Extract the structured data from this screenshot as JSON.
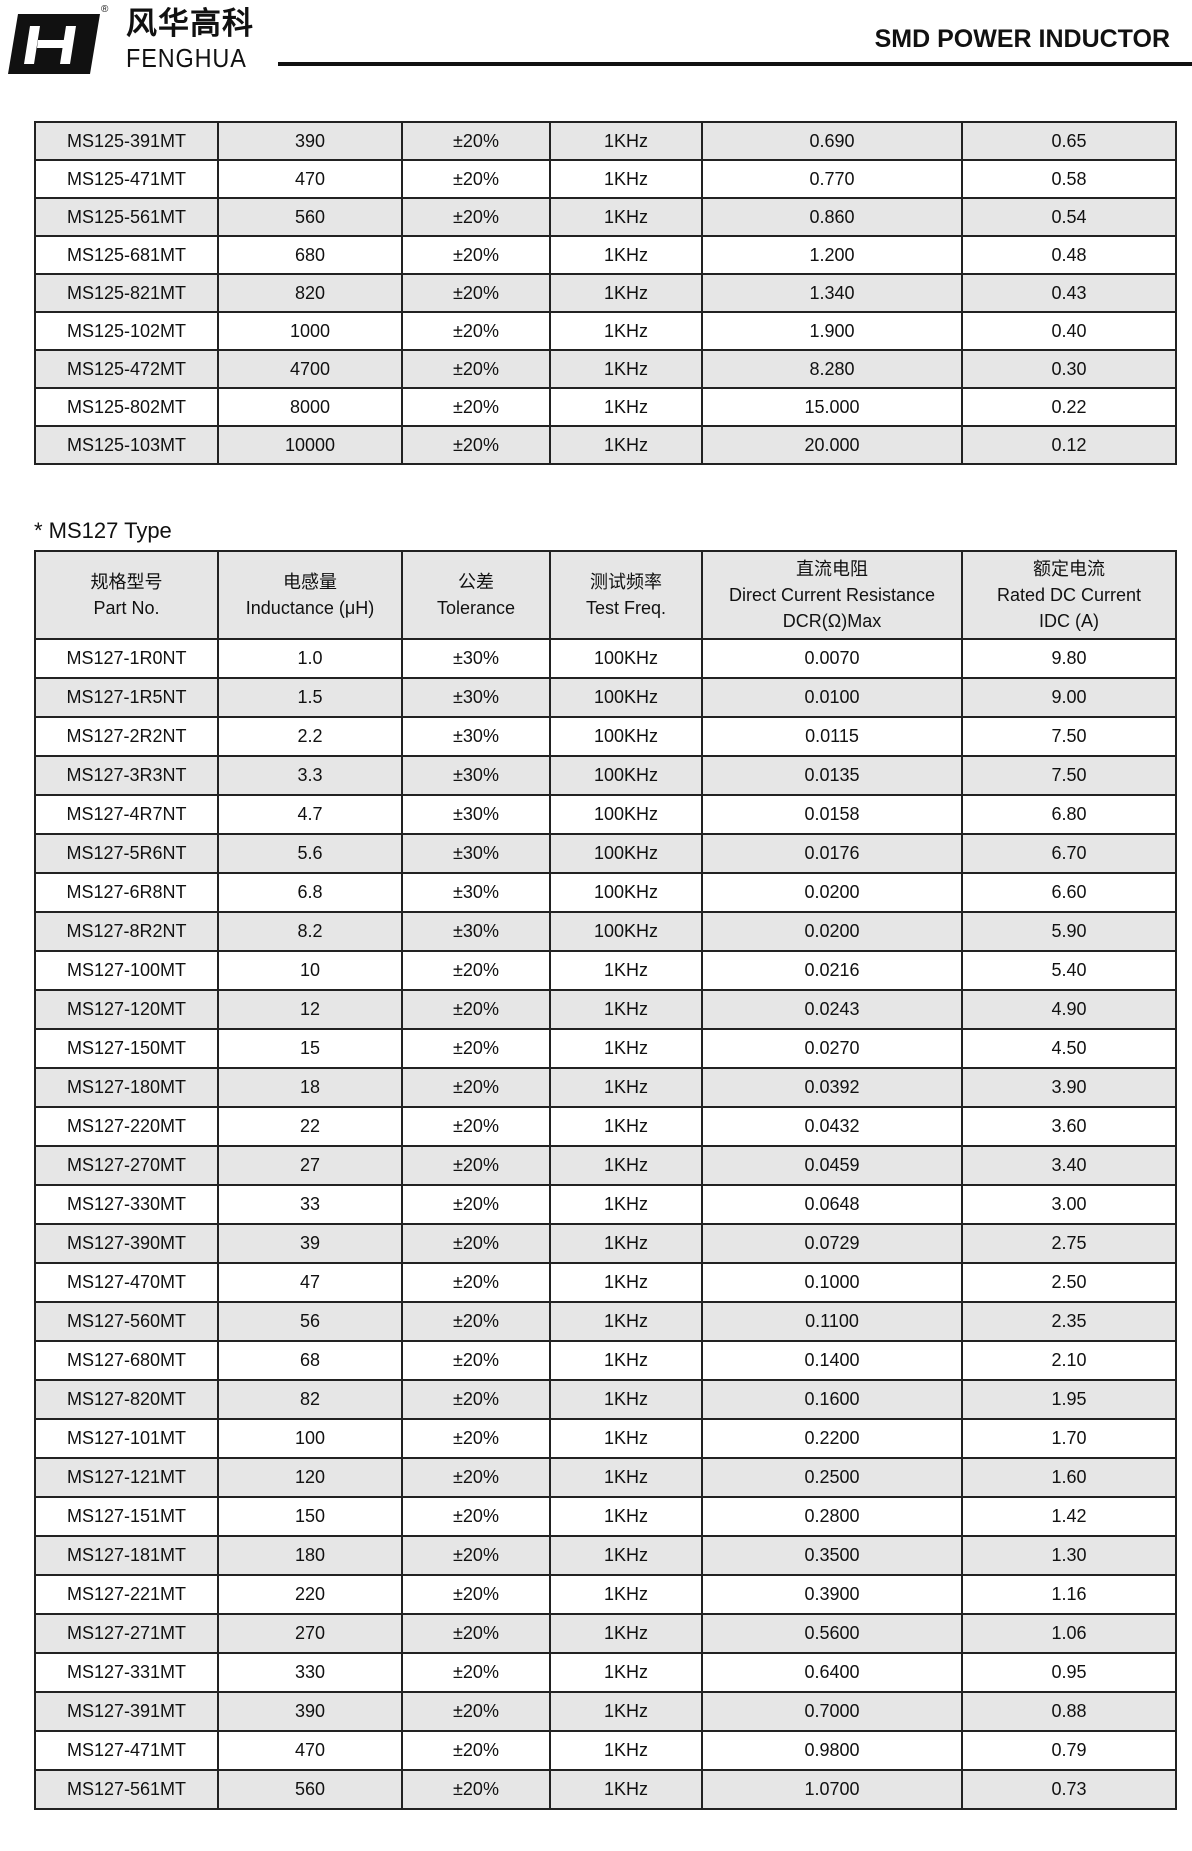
{
  "header": {
    "brand_cn": "风华高科",
    "brand_en": "FENGHUA",
    "registered": "®",
    "title": "SMD POWER INDUCTOR"
  },
  "ms125": {
    "rows": [
      [
        "MS125-391MT",
        "390",
        "±20%",
        "1KHz",
        "0.690",
        "0.65"
      ],
      [
        "MS125-471MT",
        "470",
        "±20%",
        "1KHz",
        "0.770",
        "0.58"
      ],
      [
        "MS125-561MT",
        "560",
        "±20%",
        "1KHz",
        "0.860",
        "0.54"
      ],
      [
        "MS125-681MT",
        "680",
        "±20%",
        "1KHz",
        "1.200",
        "0.48"
      ],
      [
        "MS125-821MT",
        "820",
        "±20%",
        "1KHz",
        "1.340",
        "0.43"
      ],
      [
        "MS125-102MT",
        "1000",
        "±20%",
        "1KHz",
        "1.900",
        "0.40"
      ],
      [
        "MS125-472MT",
        "4700",
        "±20%",
        "1KHz",
        "8.280",
        "0.30"
      ],
      [
        "MS125-802MT",
        "8000",
        "±20%",
        "1KHz",
        "15.000",
        "0.22"
      ],
      [
        "MS125-103MT",
        "10000",
        "±20%",
        "1KHz",
        "20.000",
        "0.12"
      ]
    ]
  },
  "ms127": {
    "section_title": "* MS127 Type",
    "headers": [
      [
        "规格型号",
        "Part No."
      ],
      [
        "电感量",
        "Inductance (μH)"
      ],
      [
        "公差",
        "Tolerance"
      ],
      [
        "测试频率",
        "Test Freq."
      ],
      [
        "直流电阻",
        "Direct Current Resistance",
        "DCR(Ω)Max"
      ],
      [
        "额定电流",
        "Rated DC Current",
        "IDC (A)"
      ]
    ],
    "rows": [
      [
        "MS127-1R0NT",
        "1.0",
        "±30%",
        "100KHz",
        "0.0070",
        "9.80"
      ],
      [
        "MS127-1R5NT",
        "1.5",
        "±30%",
        "100KHz",
        "0.0100",
        "9.00"
      ],
      [
        "MS127-2R2NT",
        "2.2",
        "±30%",
        "100KHz",
        "0.0115",
        "7.50"
      ],
      [
        "MS127-3R3NT",
        "3.3",
        "±30%",
        "100KHz",
        "0.0135",
        "7.50"
      ],
      [
        "MS127-4R7NT",
        "4.7",
        "±30%",
        "100KHz",
        "0.0158",
        "6.80"
      ],
      [
        "MS127-5R6NT",
        "5.6",
        "±30%",
        "100KHz",
        "0.0176",
        "6.70"
      ],
      [
        "MS127-6R8NT",
        "6.8",
        "±30%",
        "100KHz",
        "0.0200",
        "6.60"
      ],
      [
        "MS127-8R2NT",
        "8.2",
        "±30%",
        "100KHz",
        "0.0200",
        "5.90"
      ],
      [
        "MS127-100MT",
        "10",
        "±20%",
        "1KHz",
        "0.0216",
        "5.40"
      ],
      [
        "MS127-120MT",
        "12",
        "±20%",
        "1KHz",
        "0.0243",
        "4.90"
      ],
      [
        "MS127-150MT",
        "15",
        "±20%",
        "1KHz",
        "0.0270",
        "4.50"
      ],
      [
        "MS127-180MT",
        "18",
        "±20%",
        "1KHz",
        "0.0392",
        "3.90"
      ],
      [
        "MS127-220MT",
        "22",
        "±20%",
        "1KHz",
        "0.0432",
        "3.60"
      ],
      [
        "MS127-270MT",
        "27",
        "±20%",
        "1KHz",
        "0.0459",
        "3.40"
      ],
      [
        "MS127-330MT",
        "33",
        "±20%",
        "1KHz",
        "0.0648",
        "3.00"
      ],
      [
        "MS127-390MT",
        "39",
        "±20%",
        "1KHz",
        "0.0729",
        "2.75"
      ],
      [
        "MS127-470MT",
        "47",
        "±20%",
        "1KHz",
        "0.1000",
        "2.50"
      ],
      [
        "MS127-560MT",
        "56",
        "±20%",
        "1KHz",
        "0.1100",
        "2.35"
      ],
      [
        "MS127-680MT",
        "68",
        "±20%",
        "1KHz",
        "0.1400",
        "2.10"
      ],
      [
        "MS127-820MT",
        "82",
        "±20%",
        "1KHz",
        "0.1600",
        "1.95"
      ],
      [
        "MS127-101MT",
        "100",
        "±20%",
        "1KHz",
        "0.2200",
        "1.70"
      ],
      [
        "MS127-121MT",
        "120",
        "±20%",
        "1KHz",
        "0.2500",
        "1.60"
      ],
      [
        "MS127-151MT",
        "150",
        "±20%",
        "1KHz",
        "0.2800",
        "1.42"
      ],
      [
        "MS127-181MT",
        "180",
        "±20%",
        "1KHz",
        "0.3500",
        "1.30"
      ],
      [
        "MS127-221MT",
        "220",
        "±20%",
        "1KHz",
        "0.3900",
        "1.16"
      ],
      [
        "MS127-271MT",
        "270",
        "±20%",
        "1KHz",
        "0.5600",
        "1.06"
      ],
      [
        "MS127-331MT",
        "330",
        "±20%",
        "1KHz",
        "0.6400",
        "0.95"
      ],
      [
        "MS127-391MT",
        "390",
        "±20%",
        "1KHz",
        "0.7000",
        "0.88"
      ],
      [
        "MS127-471MT",
        "470",
        "±20%",
        "1KHz",
        "0.9800",
        "0.79"
      ],
      [
        "MS127-561MT",
        "560",
        "±20%",
        "1KHz",
        "1.0700",
        "0.73"
      ]
    ]
  }
}
